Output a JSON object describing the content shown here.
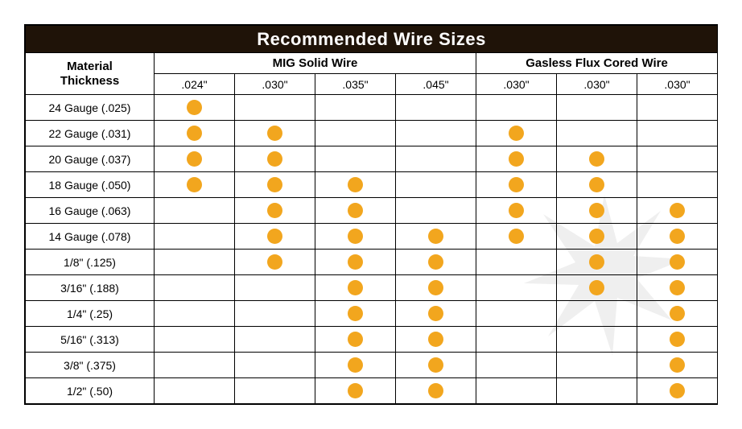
{
  "title": "Recommended Wire Sizes",
  "material_header_line1": "Material",
  "material_header_line2": "Thickness",
  "dot_color": "#f2a61e",
  "groups": [
    {
      "label": "MIG Solid Wire",
      "subcols": [
        ".024\"",
        ".030\"",
        ".035\"",
        ".045\""
      ]
    },
    {
      "label": "Gasless Flux Cored Wire",
      "subcols": [
        ".030\"",
        ".030\"",
        ".030\""
      ]
    }
  ],
  "rows": [
    {
      "label": "24 Gauge (.025)",
      "cells": [
        1,
        0,
        0,
        0,
        0,
        0,
        0
      ]
    },
    {
      "label": "22 Gauge (.031)",
      "cells": [
        1,
        1,
        0,
        0,
        1,
        0,
        0
      ]
    },
    {
      "label": "20 Gauge (.037)",
      "cells": [
        1,
        1,
        0,
        0,
        1,
        1,
        0
      ]
    },
    {
      "label": "18 Gauge (.050)",
      "cells": [
        1,
        1,
        1,
        0,
        1,
        1,
        0
      ]
    },
    {
      "label": "16 Gauge (.063)",
      "cells": [
        0,
        1,
        1,
        0,
        1,
        1,
        1
      ]
    },
    {
      "label": "14 Gauge (.078)",
      "cells": [
        0,
        1,
        1,
        1,
        1,
        1,
        1
      ]
    },
    {
      "label": "1/8\" (.125)",
      "cells": [
        0,
        1,
        1,
        1,
        0,
        1,
        1
      ]
    },
    {
      "label": "3/16\" (.188)",
      "cells": [
        0,
        0,
        1,
        1,
        0,
        1,
        1
      ]
    },
    {
      "label": "1/4\" (.25)",
      "cells": [
        0,
        0,
        1,
        1,
        0,
        0,
        1
      ]
    },
    {
      "label": "5/16\" (.313)",
      "cells": [
        0,
        0,
        1,
        1,
        0,
        0,
        1
      ]
    },
    {
      "label": "3/8\" (.375)",
      "cells": [
        0,
        0,
        1,
        1,
        0,
        0,
        1
      ]
    },
    {
      "label": "1/2\" (.50)",
      "cells": [
        0,
        0,
        1,
        1,
        0,
        0,
        1
      ]
    }
  ]
}
